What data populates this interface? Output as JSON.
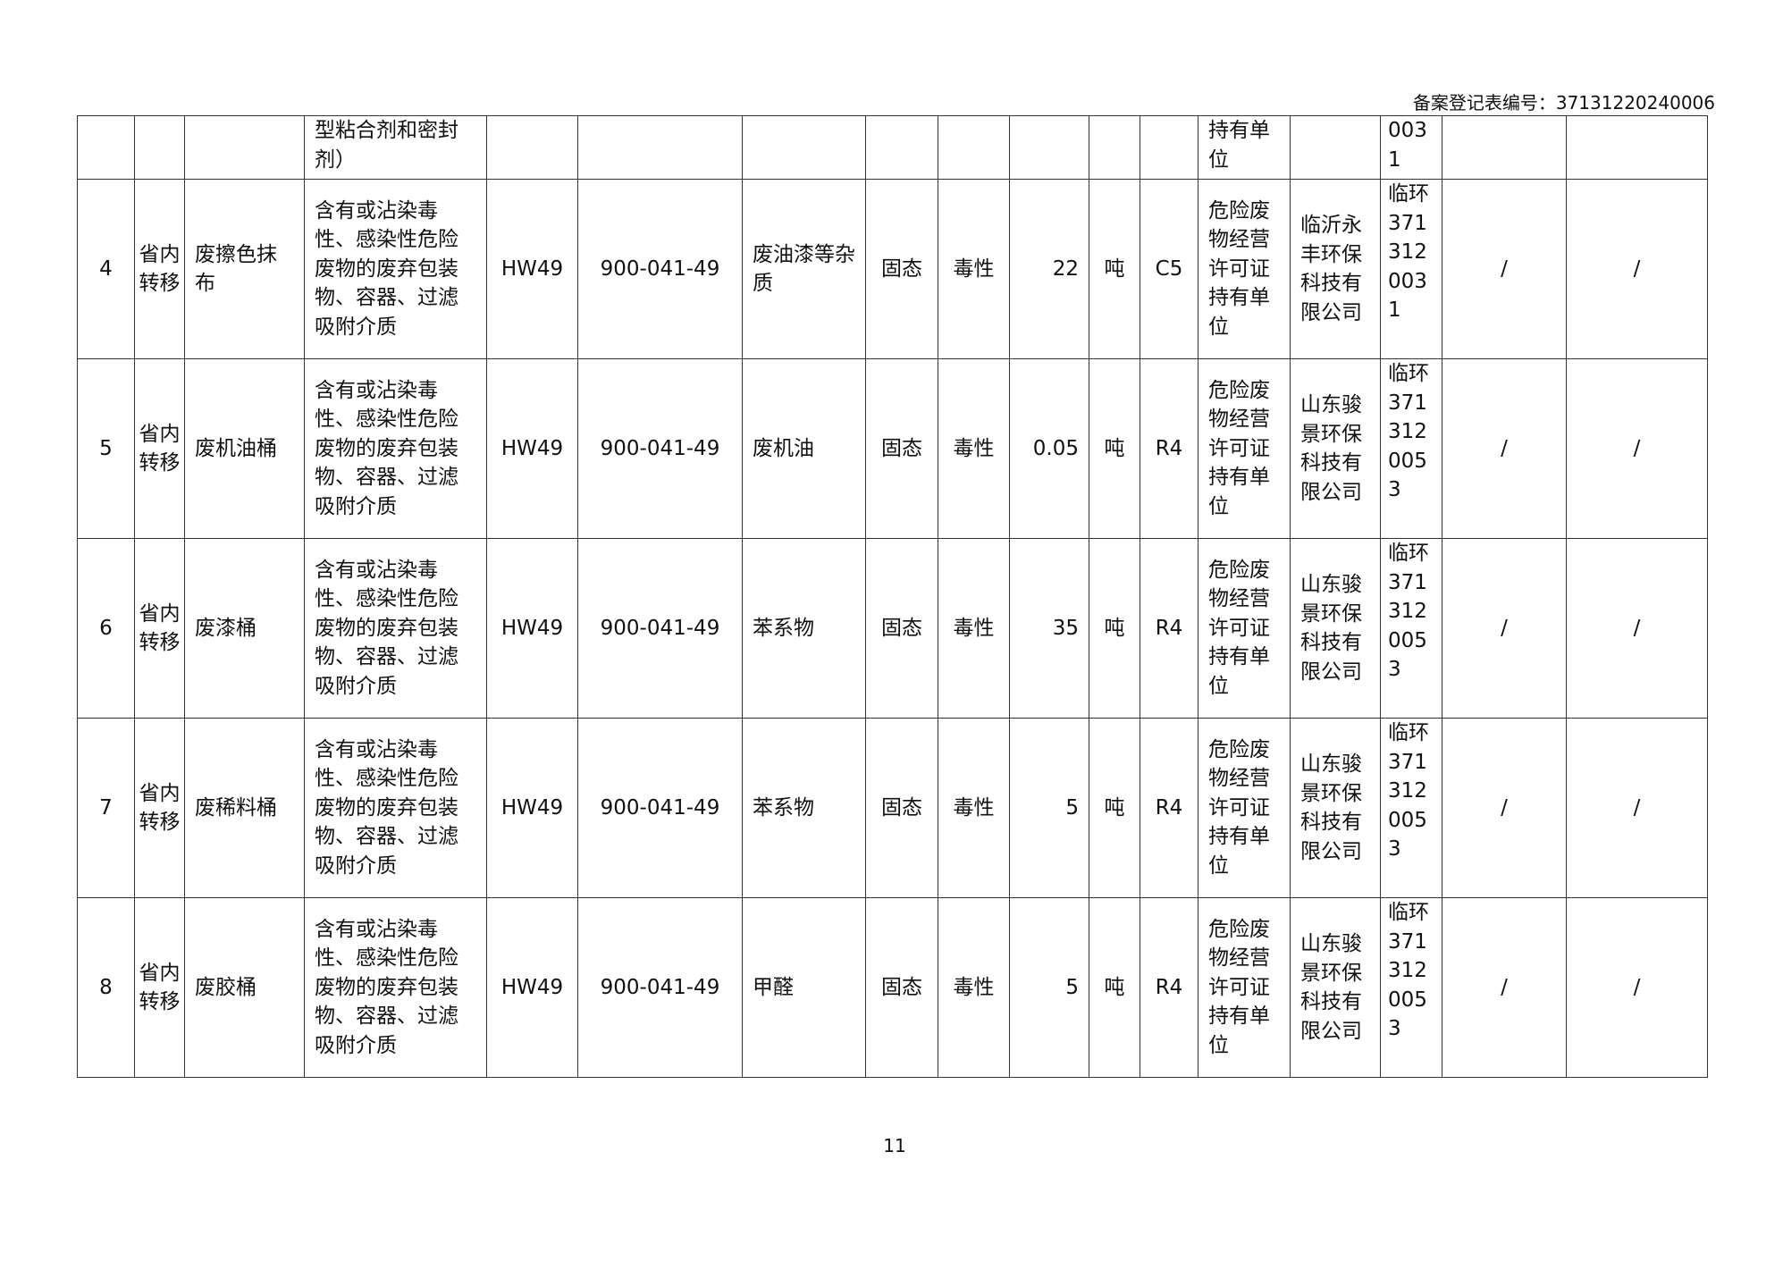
{
  "header": {
    "registration_label": "备案登记表编号：37131220240006"
  },
  "continued_row": {
    "cells": [
      "",
      "",
      "",
      "型粘合剂和密封剂）",
      "",
      "",
      "",
      "",
      "",
      "",
      "",
      "",
      "持有单位",
      "",
      "0031",
      "",
      ""
    ]
  },
  "rows": [
    {
      "no": "4",
      "transfer": "省内转移",
      "name": "废擦色抹布",
      "desc": "含有或沾染毒性、感染性危险废物的废弃包装物、容器、过滤吸附介质",
      "category": "HW49",
      "code": "900-041-49",
      "component": "废油漆等杂质",
      "form": "固态",
      "hazard": "毒性",
      "qty": "22",
      "unit": "吨",
      "method": "C5",
      "unit_type": "危险废物经营许可证持有单位",
      "receiver": "临沂永丰环保科技有限公司",
      "license": "临环3713120031",
      "col16": "/",
      "col17": "/"
    },
    {
      "no": "5",
      "transfer": "省内转移",
      "name": "废机油桶",
      "desc": "含有或沾染毒性、感染性危险废物的废弃包装物、容器、过滤吸附介质",
      "category": "HW49",
      "code": "900-041-49",
      "component": "废机油",
      "form": "固态",
      "hazard": "毒性",
      "qty": "0.05",
      "unit": "吨",
      "method": "R4",
      "unit_type": "危险废物经营许可证持有单位",
      "receiver": "山东骏景环保科技有限公司",
      "license": "临环3713120053",
      "col16": "/",
      "col17": "/"
    },
    {
      "no": "6",
      "transfer": "省内转移",
      "name": "废漆桶",
      "desc": "含有或沾染毒性、感染性危险废物的废弃包装物、容器、过滤吸附介质",
      "category": "HW49",
      "code": "900-041-49",
      "component": "苯系物",
      "form": "固态",
      "hazard": "毒性",
      "qty": "35",
      "unit": "吨",
      "method": "R4",
      "unit_type": "危险废物经营许可证持有单位",
      "receiver": "山东骏景环保科技有限公司",
      "license": "临环3713120053",
      "col16": "/",
      "col17": "/"
    },
    {
      "no": "7",
      "transfer": "省内转移",
      "name": "废稀料桶",
      "desc": "含有或沾染毒性、感染性危险废物的废弃包装物、容器、过滤吸附介质",
      "category": "HW49",
      "code": "900-041-49",
      "component": "苯系物",
      "form": "固态",
      "hazard": "毒性",
      "qty": "5",
      "unit": "吨",
      "method": "R4",
      "unit_type": "危险废物经营许可证持有单位",
      "receiver": "山东骏景环保科技有限公司",
      "license": "临环3713120053",
      "col16": "/",
      "col17": "/"
    },
    {
      "no": "8",
      "transfer": "省内转移",
      "name": "废胶桶",
      "desc": "含有或沾染毒性、感染性危险废物的废弃包装物、容器、过滤吸附介质",
      "category": "HW49",
      "code": "900-041-49",
      "component": "甲醛",
      "form": "固态",
      "hazard": "毒性",
      "qty": "5",
      "unit": "吨",
      "method": "R4",
      "unit_type": "危险废物经营许可证持有单位",
      "receiver": "山东骏景环保科技有限公司",
      "license": "临环3713120053",
      "col16": "/",
      "col17": "/"
    }
  ],
  "footer": {
    "page_number": "11"
  }
}
